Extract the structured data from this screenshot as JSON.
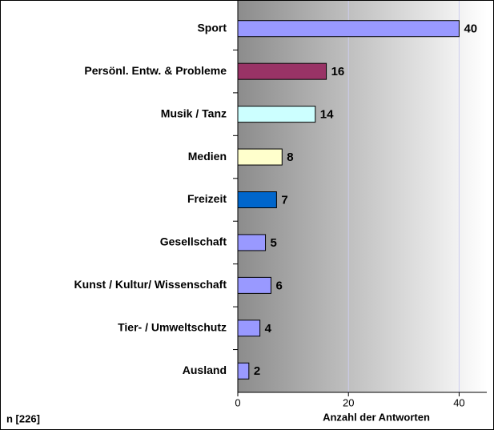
{
  "chart_data": {
    "type": "bar",
    "orientation": "horizontal",
    "categories": [
      "Sport",
      "Persönl. Entw. & Probleme",
      "Musik / Tanz",
      "Medien",
      "Freizeit",
      "Gesellschaft",
      "Kunst / Kultur/ Wissenschaft",
      "Tier- / Umweltschutz",
      "Ausland"
    ],
    "values": [
      40,
      16,
      14,
      8,
      7,
      5,
      6,
      4,
      2
    ],
    "colors": [
      "#9999ff",
      "#993366",
      "#ccffff",
      "#ffffcc",
      "#0066cc",
      "#9999ff",
      "#9999ff",
      "#9999ff",
      "#9999ff"
    ],
    "xlim": [
      0,
      45
    ],
    "xticks": [
      0,
      20,
      40
    ],
    "grid": true,
    "x_label": "Anzahl der Antworten",
    "note": "n [226]"
  }
}
